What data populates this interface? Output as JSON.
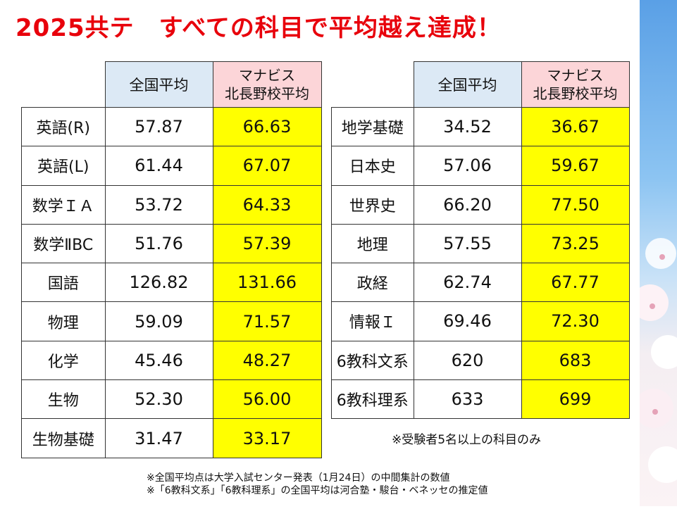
{
  "title": "2025共テ　すべての科目で平均越え達成！",
  "tables": [
    {
      "columns": [
        "全国平均",
        [
          "マナビス",
          "北長野校平均"
        ]
      ],
      "rows": [
        [
          "英語(R)",
          "57.87",
          "66.63"
        ],
        [
          "英語(L)",
          "61.44",
          "67.07"
        ],
        [
          "数学ＩＡ",
          "53.72",
          "64.33"
        ],
        [
          "数学ⅡBC",
          "51.76",
          "57.39"
        ],
        [
          "国語",
          "126.82",
          "131.66"
        ],
        [
          "物理",
          "59.09",
          "71.57"
        ],
        [
          "化学",
          "45.46",
          "48.27"
        ],
        [
          "生物",
          "52.30",
          "56.00"
        ],
        [
          "生物基礎",
          "31.47",
          "33.17"
        ]
      ]
    },
    {
      "columns": [
        "全国平均",
        [
          "マナビス",
          "北長野校平均"
        ]
      ],
      "rows": [
        [
          "地学基礎",
          "34.52",
          "36.67"
        ],
        [
          "日本史",
          "57.06",
          "59.67"
        ],
        [
          "世界史",
          "66.20",
          "77.50"
        ],
        [
          "地理",
          "57.55",
          "73.25"
        ],
        [
          "政経",
          "62.74",
          "67.77"
        ],
        [
          "情報Ｉ",
          "69.46",
          "72.30"
        ],
        [
          "6教科文系",
          "620",
          "683"
        ],
        [
          "6教科理系",
          "633",
          "699"
        ]
      ]
    }
  ],
  "note": "※受験者5名以上の科目のみ",
  "footnotes": [
    "※全国平均点は大学入試センター発表（1月24日）の中間集計の数値",
    "※「6教科文系」「6教科理系」の全国平均は河合塾・駿台・ベネッセの推定値"
  ]
}
